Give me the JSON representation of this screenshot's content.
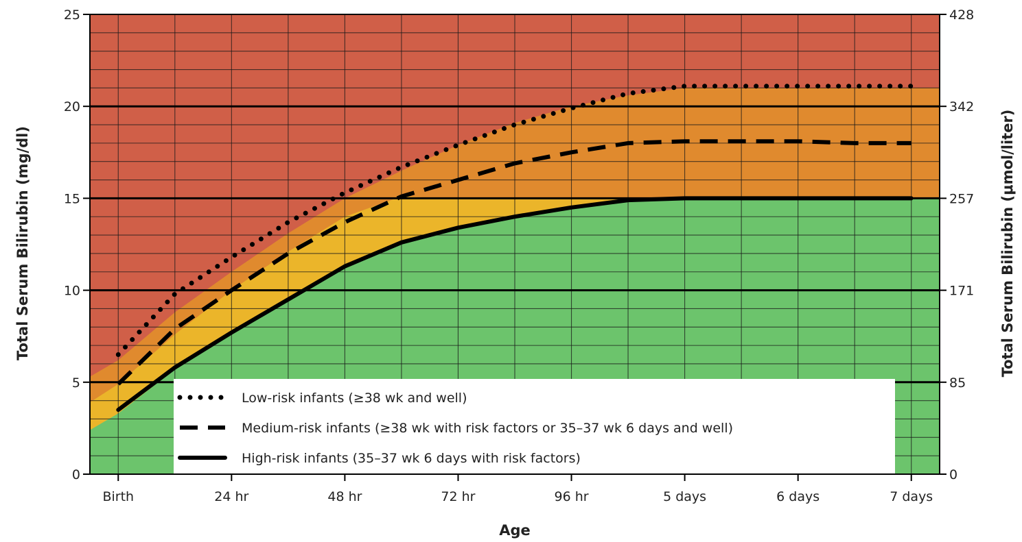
{
  "chart_data": {
    "type": "line",
    "xlabel": "Age",
    "ylabel": "Total Serum Bilirubin (mg/dl)",
    "ylabel_right": "Total Serum Bilirubin (μmol/liter)",
    "x_ticks": [
      {
        "label": "Birth",
        "hours": 0
      },
      {
        "label": "24 hr",
        "hours": 24
      },
      {
        "label": "48 hr",
        "hours": 48
      },
      {
        "label": "72 hr",
        "hours": 72
      },
      {
        "label": "96 hr",
        "hours": 96
      },
      {
        "label": "5 days",
        "hours": 120
      },
      {
        "label": "6 days",
        "hours": 144
      },
      {
        "label": "7 days",
        "hours": 168
      }
    ],
    "xlim": [
      -6,
      174
    ],
    "ylim": [
      0,
      25
    ],
    "y_ticks": [
      0,
      5,
      10,
      15,
      20,
      25
    ],
    "y_right_ticks": [
      {
        "label": "0",
        "value": 0
      },
      {
        "label": "85",
        "value": 5
      },
      {
        "label": "171",
        "value": 10
      },
      {
        "label": "257",
        "value": 15
      },
      {
        "label": "342",
        "value": 20
      },
      {
        "label": "428",
        "value": 25
      }
    ],
    "grid": true,
    "legend_position": "bottom-center",
    "zones": {
      "colors": {
        "top": "#d05f48",
        "upper_mid": "#e08a2e",
        "lower_mid": "#ebb52a",
        "bottom": "#6cc46c"
      },
      "red_orange_boundary": [
        [
          -6,
          5.3
        ],
        [
          0,
          6.2
        ],
        [
          12,
          8.8
        ],
        [
          24,
          11.0
        ],
        [
          36,
          13.1
        ],
        [
          48,
          15.0
        ],
        [
          60,
          16.5
        ],
        [
          72,
          17.9
        ],
        [
          84,
          19.1
        ],
        [
          96,
          20.0
        ],
        [
          108,
          20.6
        ],
        [
          120,
          21.0
        ],
        [
          174,
          21.0
        ]
      ],
      "orange_yellow_boundary": [
        [
          -6,
          3.9
        ],
        [
          0,
          4.9
        ],
        [
          12,
          7.6
        ],
        [
          24,
          10.0
        ],
        [
          36,
          12.1
        ],
        [
          48,
          14.0
        ],
        [
          60,
          15.1
        ],
        [
          70,
          15.0
        ],
        [
          174,
          15.0
        ]
      ],
      "yellow_green_boundary": [
        [
          -6,
          2.4
        ],
        [
          0,
          3.3
        ],
        [
          12,
          5.7
        ],
        [
          24,
          7.7
        ],
        [
          36,
          9.6
        ],
        [
          48,
          11.3
        ],
        [
          60,
          12.6
        ],
        [
          72,
          13.5
        ],
        [
          84,
          14.1
        ],
        [
          96,
          14.6
        ],
        [
          108,
          14.9
        ],
        [
          120,
          15.0
        ],
        [
          174,
          15.0
        ]
      ]
    },
    "series": [
      {
        "name": "Low-risk infants (≥38 wk and well)",
        "style": "dotted",
        "x": [
          0,
          12,
          24,
          36,
          48,
          60,
          72,
          84,
          96,
          108,
          120,
          132,
          144,
          156,
          168
        ],
        "y": [
          6.5,
          9.8,
          11.8,
          13.7,
          15.3,
          16.7,
          17.9,
          19.0,
          19.9,
          20.7,
          21.1,
          21.1,
          21.1,
          21.1,
          21.1
        ]
      },
      {
        "name": "Medium-risk infants (≥38 wk with risk factors or 35–37 wk 6 days and well)",
        "style": "dashed",
        "x": [
          0,
          12,
          24,
          36,
          48,
          60,
          72,
          84,
          96,
          108,
          120,
          132,
          144,
          156,
          168
        ],
        "y": [
          4.9,
          7.9,
          10.0,
          12.0,
          13.7,
          15.1,
          16.0,
          16.9,
          17.5,
          18.0,
          18.1,
          18.1,
          18.1,
          18.0,
          18.0
        ]
      },
      {
        "name": "High-risk infants (35–37 wk 6 days with risk factors)",
        "style": "solid",
        "x": [
          0,
          12,
          24,
          36,
          48,
          60,
          72,
          84,
          96,
          108,
          120,
          132,
          144,
          156,
          168
        ],
        "y": [
          3.5,
          5.8,
          7.7,
          9.5,
          11.3,
          12.6,
          13.4,
          14.0,
          14.5,
          14.9,
          15.0,
          15.0,
          15.0,
          15.0,
          15.0
        ]
      }
    ]
  }
}
